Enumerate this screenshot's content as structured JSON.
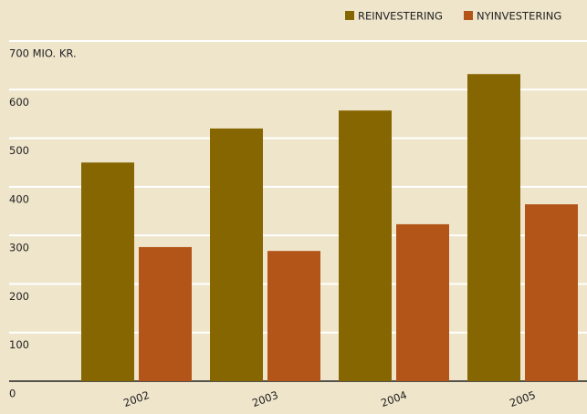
{
  "chart_data": {
    "type": "bar",
    "categories": [
      "2002",
      "2003",
      "2004",
      "2005"
    ],
    "series": [
      {
        "name": "REINVESTERING",
        "color": "#866600",
        "values": [
          450,
          520,
          557,
          632
        ]
      },
      {
        "name": "NYINVESTERING",
        "color": "#b35418",
        "values": [
          276,
          268,
          323,
          364
        ]
      }
    ],
    "ylim": [
      0,
      700
    ],
    "yticks": [
      0,
      100,
      200,
      300,
      400,
      500,
      600,
      {
        "value": 700,
        "label": "700 MIO. KR."
      }
    ],
    "grid": true,
    "legend": "top-right"
  }
}
